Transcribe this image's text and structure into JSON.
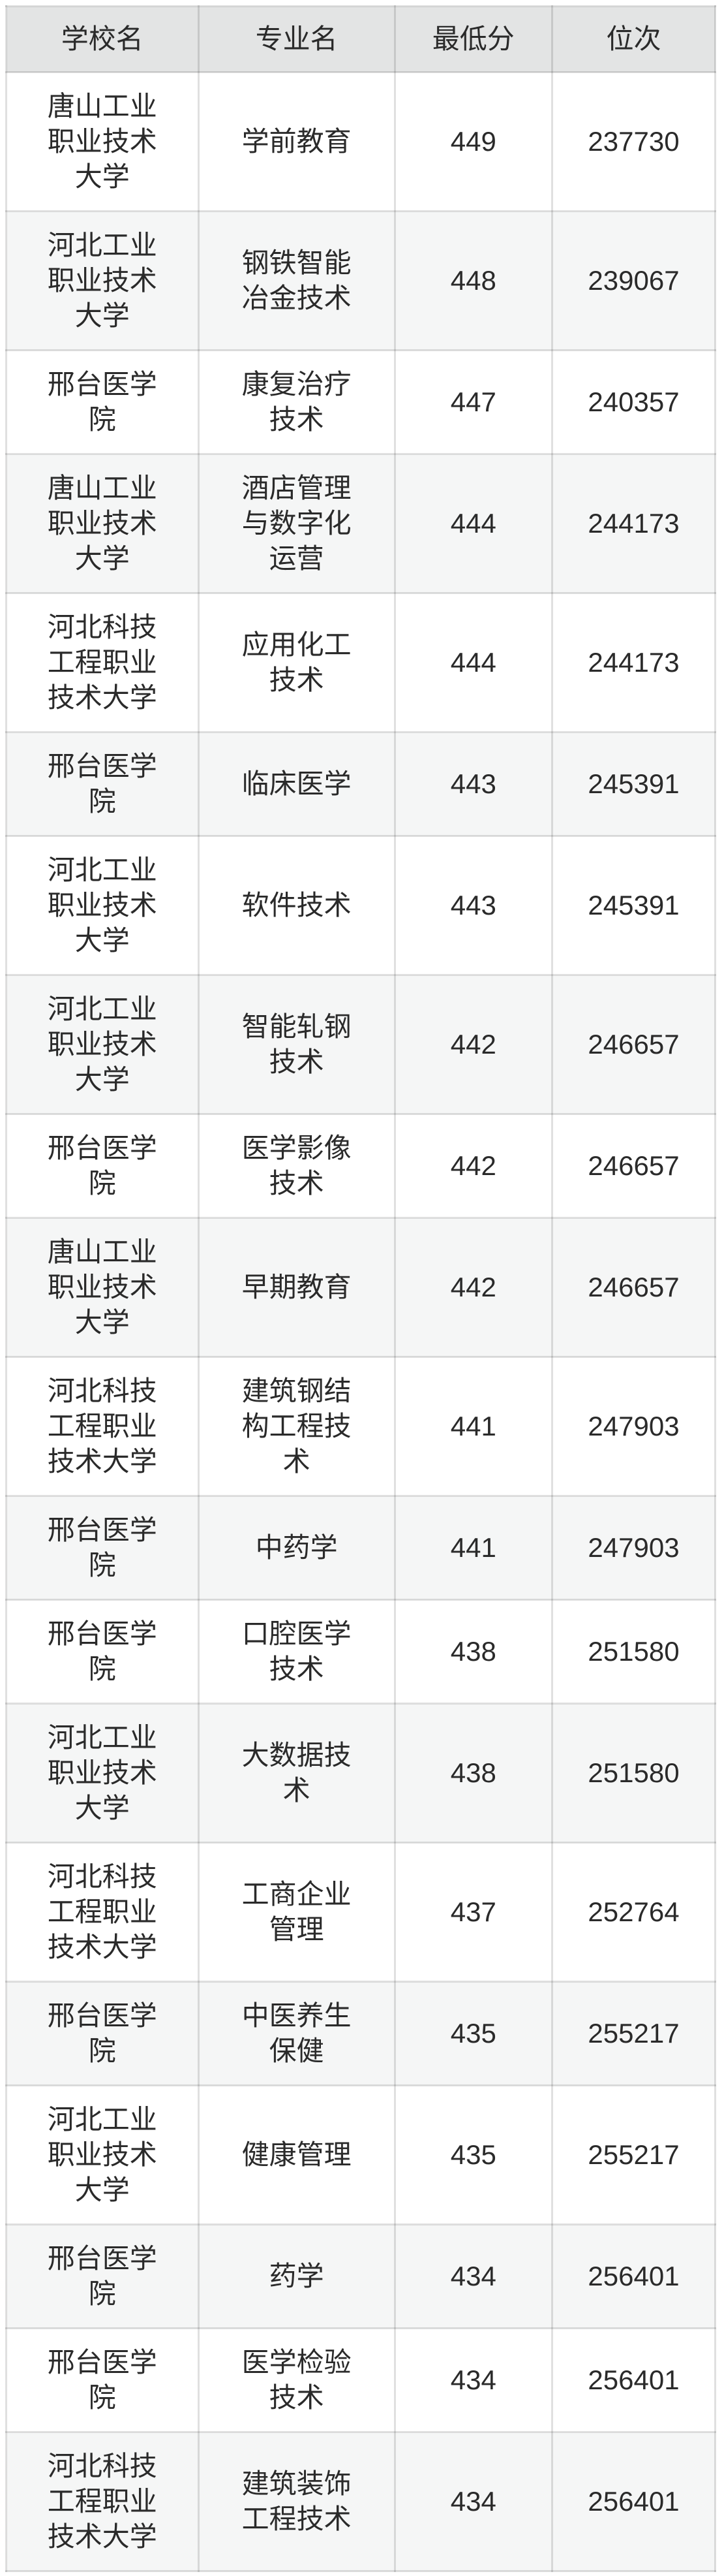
{
  "table": {
    "headers": [
      "学校名",
      "专业名",
      "最低分",
      "位次"
    ],
    "rows": [
      {
        "school": "唐山工业职业技术大学",
        "major": "学前教育",
        "score": "449",
        "rank": "237730"
      },
      {
        "school": "河北工业职业技术大学",
        "major": "钢铁智能冶金技术",
        "score": "448",
        "rank": "239067"
      },
      {
        "school": "邢台医学院",
        "major": "康复治疗技术",
        "score": "447",
        "rank": "240357"
      },
      {
        "school": "唐山工业职业技术大学",
        "major": "酒店管理与数字化运营",
        "score": "444",
        "rank": "244173"
      },
      {
        "school": "河北科技工程职业技术大学",
        "major": "应用化工技术",
        "score": "444",
        "rank": "244173"
      },
      {
        "school": "邢台医学院",
        "major": "临床医学",
        "score": "443",
        "rank": "245391"
      },
      {
        "school": "河北工业职业技术大学",
        "major": "软件技术",
        "score": "443",
        "rank": "245391"
      },
      {
        "school": "河北工业职业技术大学",
        "major": "智能轧钢技术",
        "score": "442",
        "rank": "246657"
      },
      {
        "school": "邢台医学院",
        "major": "医学影像技术",
        "score": "442",
        "rank": "246657"
      },
      {
        "school": "唐山工业职业技术大学",
        "major": "早期教育",
        "score": "442",
        "rank": "246657"
      },
      {
        "school": "河北科技工程职业技术大学",
        "major": "建筑钢结构工程技术",
        "score": "441",
        "rank": "247903"
      },
      {
        "school": "邢台医学院",
        "major": "中药学",
        "score": "441",
        "rank": "247903"
      },
      {
        "school": "邢台医学院",
        "major": "口腔医学技术",
        "score": "438",
        "rank": "251580"
      },
      {
        "school": "河北工业职业技术大学",
        "major": "大数据技术",
        "score": "438",
        "rank": "251580"
      },
      {
        "school": "河北科技工程职业技术大学",
        "major": "工商企业管理",
        "score": "437",
        "rank": "252764"
      },
      {
        "school": "邢台医学院",
        "major": "中医养生保健",
        "score": "435",
        "rank": "255217"
      },
      {
        "school": "河北工业职业技术大学",
        "major": "健康管理",
        "score": "435",
        "rank": "255217"
      },
      {
        "school": "邢台医学院",
        "major": "药学",
        "score": "434",
        "rank": "256401"
      },
      {
        "school": "邢台医学院",
        "major": "医学检验技术",
        "score": "434",
        "rank": "256401"
      },
      {
        "school": "河北科技工程职业技术大学",
        "major": "建筑装饰工程技术",
        "score": "434",
        "rank": "256401"
      }
    ]
  },
  "colors": {
    "header_bg": "#e3e4e4",
    "row_bg": "#ffffff",
    "row_alt_bg": "#f5f6f6",
    "border": "#e0e0e0",
    "text": "#2a2a2a"
  }
}
